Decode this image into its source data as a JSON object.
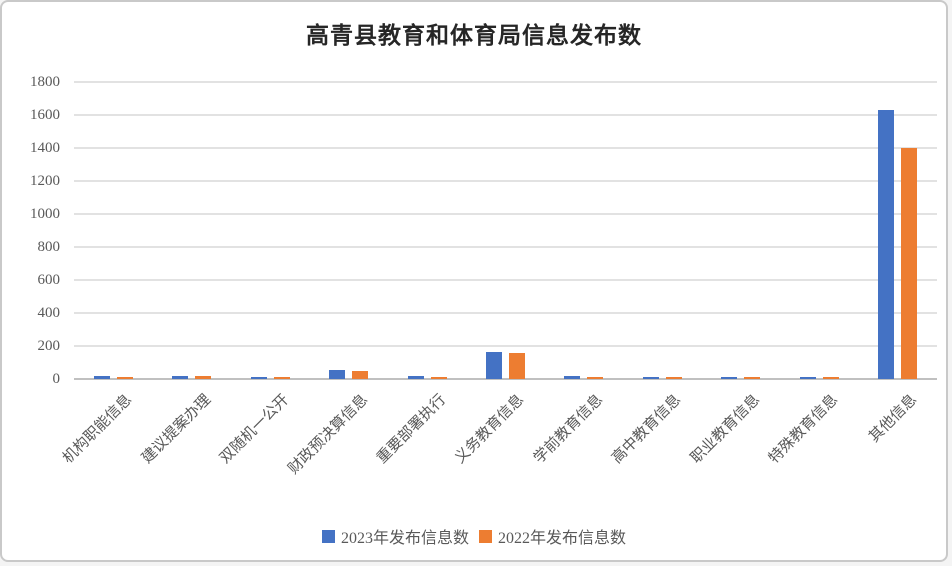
{
  "title": "高青县教育和体育局信息发布数",
  "chart_data": {
    "type": "bar",
    "title": "高青县教育和体育局信息发布数",
    "categories": [
      "机构职能信息",
      "建议提案办理",
      "双随机一公开",
      "财政预决算信息",
      "重要部署执行",
      "义务教育信息",
      "学前教育信息",
      "高中教育信息",
      "职业教育信息",
      "特殊教育信息",
      "其他信息"
    ],
    "series": [
      {
        "name": "2023年发布信息数",
        "color": "#4472C4",
        "values": [
          20,
          20,
          12,
          55,
          20,
          165,
          20,
          12,
          12,
          12,
          1630
        ]
      },
      {
        "name": "2022年发布信息数",
        "color": "#ED7D31",
        "values": [
          10,
          18,
          10,
          50,
          15,
          160,
          10,
          10,
          10,
          10,
          1400
        ]
      }
    ],
    "xlabel": "",
    "ylabel": "",
    "ylim": [
      0,
      1800
    ],
    "ytick_step": 200,
    "yticks": [
      0,
      200,
      400,
      600,
      800,
      1000,
      1200,
      1400,
      1600,
      1800
    ],
    "grid": true,
    "legend_position": "bottom"
  },
  "colors": {
    "series_2023": "#4472C4",
    "series_2022": "#ED7D31",
    "gridline": "#e2e2e2",
    "axis_line": "#c0c0c0",
    "axis_label": "#595959",
    "title_text": "#262626",
    "frame_border": "#c9c9c9",
    "background": "#ffffff"
  }
}
